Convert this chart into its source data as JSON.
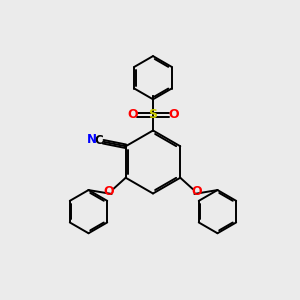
{
  "bg_color": "#ebebeb",
  "bond_color": "#000000",
  "bond_width": 1.4,
  "S_color": "#cccc00",
  "O_color": "#ff0000",
  "N_color": "#0000ff",
  "C_color": "#000000",
  "figsize": [
    3.0,
    3.0
  ],
  "dpi": 100,
  "xlim": [
    0,
    10
  ],
  "ylim": [
    0,
    10
  ]
}
